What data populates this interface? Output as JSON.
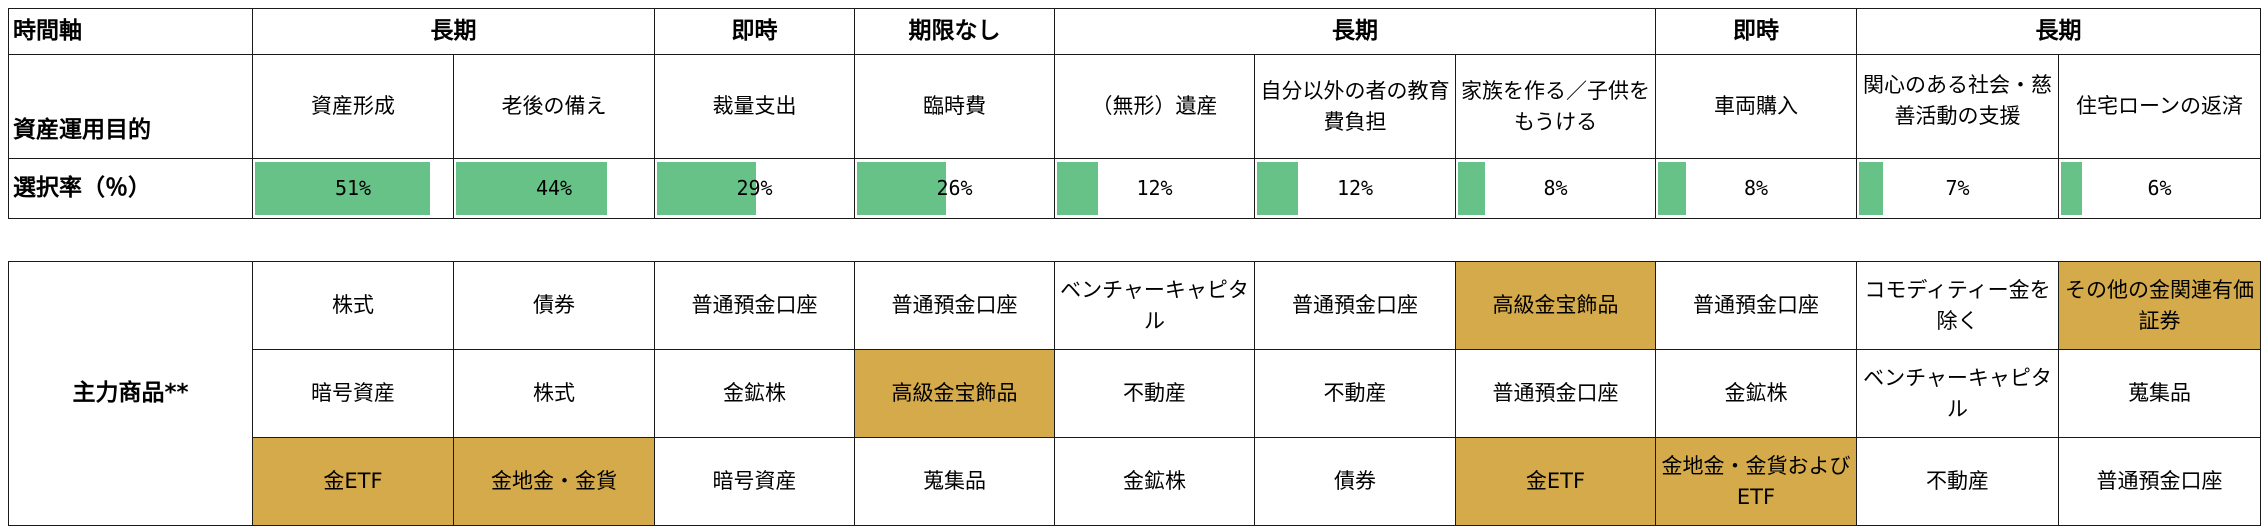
{
  "colors": {
    "bar": "#66c286",
    "highlight": "#d4aa4b"
  },
  "row_labels": {
    "horizon": "時間軸",
    "goal": "資産運用目的",
    "rate": "選択率（％）",
    "products": "主力商品**"
  },
  "horizon_groups": [
    "長期",
    "即時",
    "期限なし",
    "長期",
    "即時",
    "長期"
  ],
  "columns": [
    {
      "goal": "資産形成",
      "rate_label": "51%",
      "rate": 51,
      "products": [
        "株式",
        "暗号資産",
        "金ETF"
      ],
      "highlight": [
        false,
        false,
        true
      ]
    },
    {
      "goal": "老後の備え",
      "rate_label": "44%",
      "rate": 44,
      "products": [
        "債券",
        "株式",
        "金地金・金貨"
      ],
      "highlight": [
        false,
        false,
        true
      ]
    },
    {
      "goal": "裁量支出",
      "rate_label": "29%",
      "rate": 29,
      "products": [
        "普通預金口座",
        "金鉱株",
        "暗号資産"
      ],
      "highlight": [
        false,
        false,
        false
      ]
    },
    {
      "goal": "臨時費",
      "rate_label": "26%",
      "rate": 26,
      "products": [
        "普通預金口座",
        "高級金宝飾品",
        "蒐集品"
      ],
      "highlight": [
        false,
        true,
        false
      ]
    },
    {
      "goal": "（無形）遺産",
      "rate_label": "12%",
      "rate": 12,
      "products": [
        "ベンチャーキャピタル",
        "不動産",
        "金鉱株"
      ],
      "highlight": [
        false,
        false,
        false
      ]
    },
    {
      "goal": "自分以外の者の教育費負担",
      "rate_label": "12%",
      "rate": 12,
      "products": [
        "普通預金口座",
        "不動産",
        "債券"
      ],
      "highlight": [
        false,
        false,
        false
      ]
    },
    {
      "goal": "家族を作る／子供をもうける",
      "rate_label": "8%",
      "rate": 8,
      "products": [
        "高級金宝飾品",
        "普通預金口座",
        "金ETF"
      ],
      "highlight": [
        true,
        false,
        true
      ]
    },
    {
      "goal": "車両購入",
      "rate_label": "8%",
      "rate": 8,
      "products": [
        "普通預金口座",
        "金鉱株",
        "金地金・金貨およびETF"
      ],
      "highlight": [
        false,
        false,
        true
      ]
    },
    {
      "goal": "関心のある社会・慈善活動の支援",
      "rate_label": "7%",
      "rate": 7,
      "products": [
        "コモディティー金を除く",
        "ベンチャーキャピタル",
        "不動産"
      ],
      "highlight": [
        false,
        false,
        false
      ]
    },
    {
      "goal": "住宅ローンの返済",
      "rate_label": "6%",
      "rate": 6,
      "products": [
        "その他の金関連有価証券",
        "蒐集品",
        "普通預金口座"
      ],
      "highlight": [
        true,
        false,
        false
      ]
    }
  ]
}
